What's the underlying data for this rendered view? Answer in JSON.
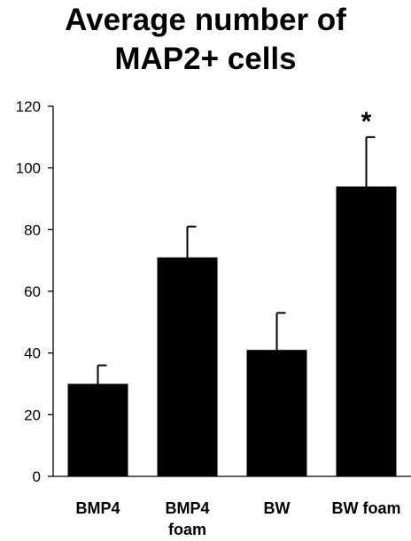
{
  "chart_data": {
    "type": "bar",
    "title_lines": [
      "Average number of",
      "MAP2+ cells"
    ],
    "categories": [
      [
        "BMP4"
      ],
      [
        "BMP4",
        "foam"
      ],
      [
        "BW"
      ],
      [
        "BW foam"
      ]
    ],
    "values": [
      30,
      71,
      41,
      94
    ],
    "error_upper": [
      6,
      10,
      12,
      16
    ],
    "annotations": [
      "",
      "",
      "",
      "*"
    ],
    "ylim": [
      0,
      120
    ],
    "yticks": [
      0,
      20,
      40,
      60,
      80,
      100,
      120
    ],
    "xlabel": "",
    "ylabel": "",
    "grid": false,
    "legend": "none",
    "bar_color": "#000000"
  }
}
